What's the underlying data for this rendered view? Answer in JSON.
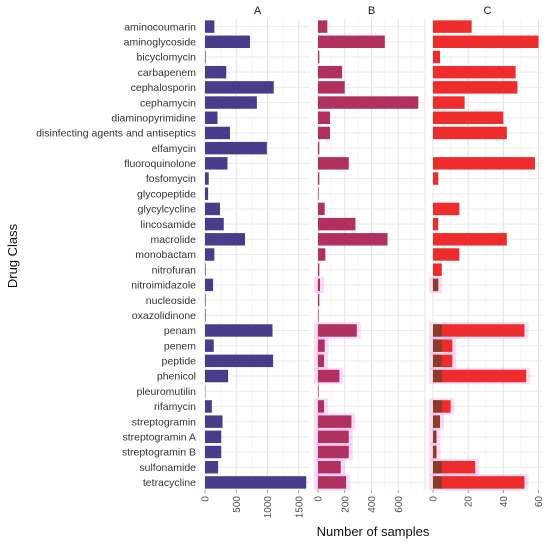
{
  "chart_data": {
    "type": "bar",
    "orientation": "horizontal",
    "xlabel": "Number of samples",
    "ylabel": "Drug Class",
    "grid": true,
    "legend": "none",
    "categories": [
      "aminocoumarin",
      "aminoglycoside",
      "bicyclomycin",
      "carbapenem",
      "cephalosporin",
      "cephamycin",
      "diaminopyrimidine",
      "disinfecting agents and antiseptics",
      "elfamycin",
      "fluoroquinolone",
      "fosfomycin",
      "glycopeptide",
      "glycylcycline",
      "lincosamide",
      "macrolide",
      "monobactam",
      "nitrofuran",
      "nitroimidazole",
      "nucleoside",
      "oxazolidinone",
      "penam",
      "penem",
      "peptide",
      "phenicol",
      "pleuromutilin",
      "rifamycin",
      "streptogramin",
      "streptogramin A",
      "streptogramin B",
      "sulfonamide",
      "tetracycline"
    ],
    "panels": [
      {
        "name": "A",
        "color": "#483D8B",
        "xlim": [
          0,
          1680
        ],
        "ticks": [
          0,
          500,
          1000,
          1500
        ],
        "values": [
          150,
          720,
          10,
          340,
          1100,
          830,
          200,
          400,
          990,
          360,
          60,
          50,
          240,
          300,
          640,
          150,
          10,
          130,
          10,
          10,
          1080,
          140,
          1090,
          370,
          5,
          110,
          280,
          260,
          260,
          210,
          1620
        ]
      },
      {
        "name": "B",
        "color": "#B03060",
        "xlim": [
          0,
          800
        ],
        "ticks": [
          0,
          200,
          400,
          600
        ],
        "values": [
          70,
          500,
          10,
          180,
          200,
          750,
          90,
          90,
          10,
          230,
          10,
          5,
          50,
          280,
          520,
          55,
          10,
          15,
          10,
          5,
          290,
          50,
          45,
          160,
          5,
          45,
          250,
          230,
          230,
          170,
          210
        ]
      },
      {
        "name": "C",
        "color": "#EE2C2C",
        "xlim": [
          0,
          62
        ],
        "ticks": [
          0,
          20,
          40,
          60
        ],
        "values": [
          22,
          60,
          4,
          47,
          48,
          18,
          40,
          42,
          0,
          58,
          3,
          0,
          15,
          3,
          42,
          15,
          5,
          3,
          0,
          0,
          52,
          11,
          11,
          53,
          0,
          10,
          4,
          2,
          2,
          24,
          52
        ]
      }
    ],
    "highlighted_categories": [
      "nitroimidazole",
      "penam",
      "penem",
      "peptide",
      "phenicol",
      "rifamycin",
      "streptogramin",
      "streptogramin A",
      "streptogramin B",
      "sulfonamide",
      "tetracycline"
    ],
    "highlight_color": "#EE82EE",
    "overlay_color": "#6B4226"
  }
}
